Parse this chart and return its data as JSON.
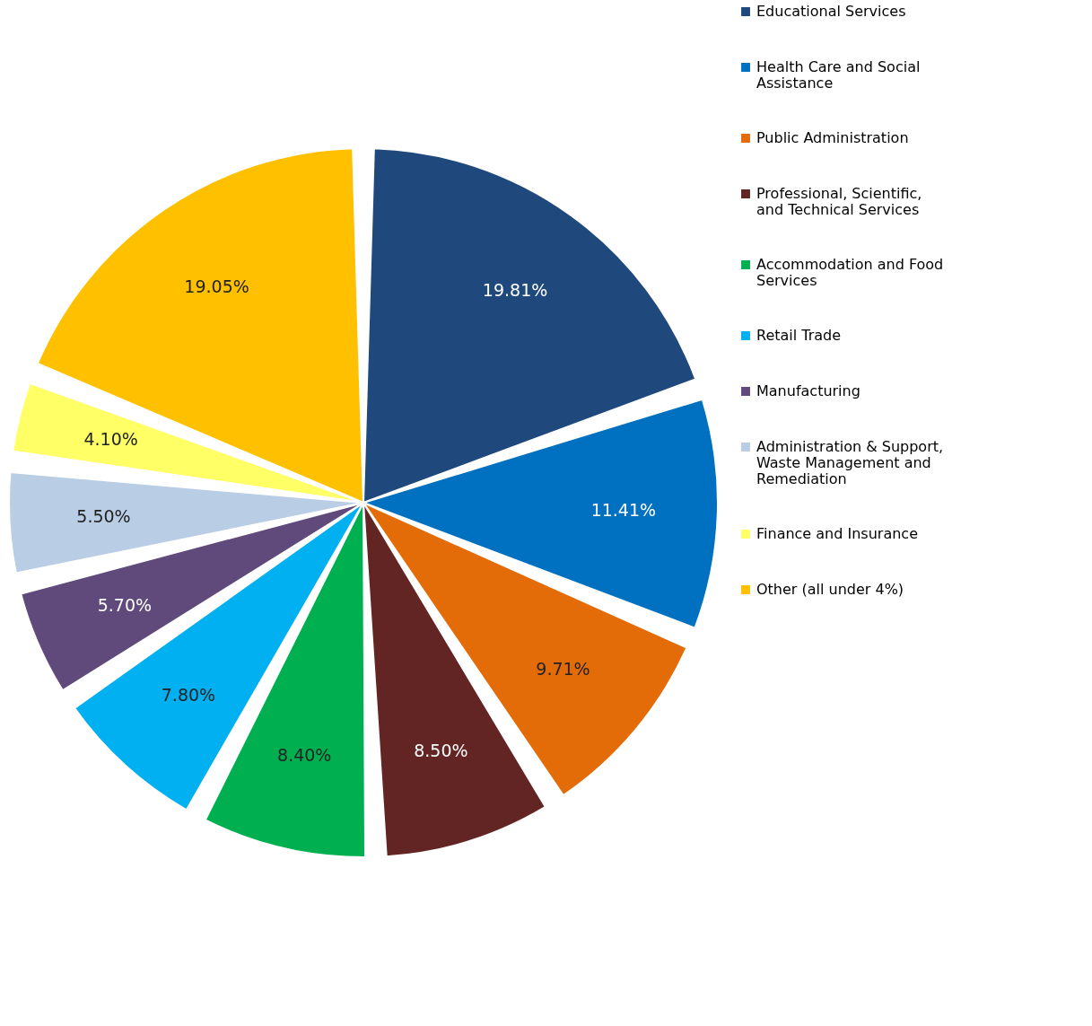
{
  "chart_data": {
    "type": "pie",
    "categories": [
      "Educational Services",
      "Health Care and Social Assistance",
      "Public Administration",
      "Professional, Scientific, and Technical Services",
      "Accommodation and Food Services",
      "Retail Trade",
      "Manufacturing",
      "Administration & Support, Waste Management and Remediation",
      "Finance and Insurance",
      "Other (all under 4%)"
    ],
    "values": [
      19.81,
      11.41,
      9.71,
      8.5,
      8.4,
      7.8,
      5.7,
      5.5,
      4.1,
      19.05
    ],
    "value_labels": [
      "19.81%",
      "11.41%",
      "9.71%",
      "8.50%",
      "8.40%",
      "7.80%",
      "5.70%",
      "5.50%",
      "4.10%",
      "19.05%"
    ],
    "colors": [
      "#1f497d",
      "#0070c0",
      "#e36c09",
      "#632523",
      "#00b050",
      "#00b0f0",
      "#604a7b",
      "#b9cde5",
      "#ffff66",
      "#ffc000"
    ],
    "legend": "right"
  }
}
